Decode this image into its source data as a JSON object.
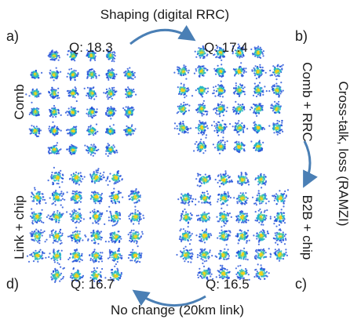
{
  "chart_data": {
    "type": "scatter",
    "subtype": "constellation-diagrams",
    "modulation": "32QAM (cross constellation)",
    "point_colors": [
      "#1f4fd8",
      "#1fb3c8",
      "#5fd08a",
      "#f2d21a"
    ],
    "arrow_color": "#4a7fb5",
    "annotations": {
      "top": "Shaping (digital RRC)",
      "right": "Cross-talk, loss (RAMZI)",
      "bottom": "No change (20km link)"
    },
    "panels": [
      {
        "id": "a",
        "letter": "a)",
        "q_label": "Q: 18.3",
        "q": 18.3,
        "side_label": "Comb",
        "cloud_spread": 0.22
      },
      {
        "id": "b",
        "letter": "b)",
        "q_label": "Q: 17.4",
        "q": 17.4,
        "side_label": "Comb + RRC",
        "cloud_spread": 0.25
      },
      {
        "id": "c",
        "letter": "c)",
        "q_label": "Q: 16.5",
        "q": 16.5,
        "side_label": "B2B + chip",
        "cloud_spread": 0.28
      },
      {
        "id": "d",
        "letter": "d)",
        "q_label": "Q: 16.7",
        "q": 16.7,
        "side_label": "Link + chip",
        "cloud_spread": 0.28
      }
    ]
  }
}
